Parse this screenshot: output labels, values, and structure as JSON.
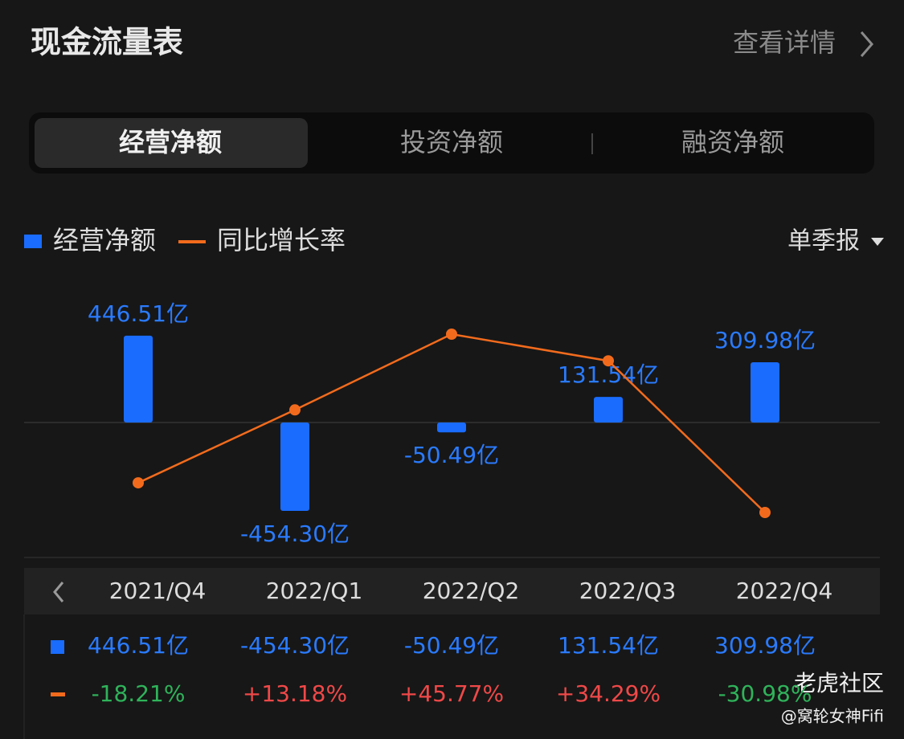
{
  "header": {
    "title": "现金流量表",
    "link": "查看详情"
  },
  "tabs": [
    "经营净额",
    "投资净额",
    "融资净额"
  ],
  "period": "单季报",
  "chart_data": {
    "type": "bar-line",
    "categories": [
      "2021/Q4",
      "2022/Q1",
      "2022/Q2",
      "2022/Q3",
      "2022/Q4"
    ],
    "series": [
      {
        "name": "经营净额",
        "type": "bar",
        "color": "#1a6cff",
        "values": [
          446.51,
          -454.3,
          -50.49,
          131.54,
          309.98
        ],
        "value_labels": [
          "446.51亿",
          "-454.30亿",
          "-50.49亿",
          "131.54亿",
          "309.98亿"
        ]
      },
      {
        "name": "同比增长率",
        "type": "line",
        "color": "#f26b1d",
        "axis": "y2",
        "values": [
          -18.21,
          13.18,
          45.77,
          34.29,
          -30.98
        ],
        "value_labels": [
          "-18.21%",
          "+13.18%",
          "+45.77%",
          "+34.29%",
          "-30.98%"
        ]
      }
    ]
  },
  "watermark": {
    "brand": "老虎社区",
    "author": "@窝轮女神Fifi"
  }
}
